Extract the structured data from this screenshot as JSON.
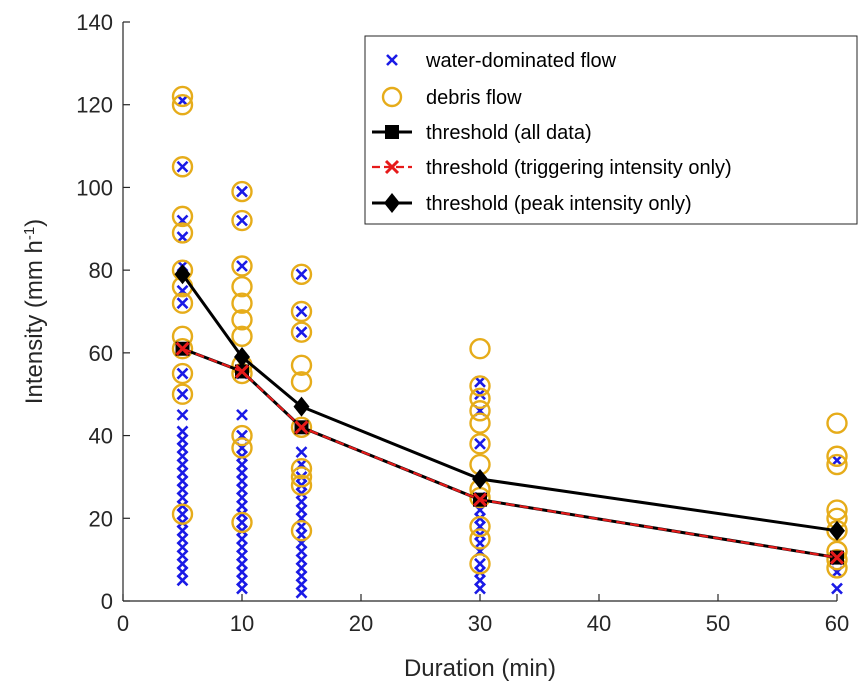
{
  "chart_data": {
    "type": "scatter",
    "title": "",
    "xlabel": "Duration (min)",
    "ylabel_base": "Intensity (mm h",
    "ylabel_sup": "-1",
    "ylabel_close": ")",
    "xlim": [
      0,
      60
    ],
    "ylim": [
      0,
      140
    ],
    "x_tick_labels": [
      "0",
      "10",
      "20",
      "30",
      "40",
      "50",
      "60"
    ],
    "y_tick_labels": [
      "0",
      "20",
      "40",
      "60",
      "80",
      "100",
      "120",
      "140"
    ],
    "x_tick_values": [
      0,
      10,
      20,
      30,
      40,
      50,
      60
    ],
    "y_tick_values": [
      0,
      20,
      40,
      60,
      80,
      100,
      120,
      140
    ],
    "grid": false,
    "legend_position": "top-right",
    "colors": {
      "water": "#1a1ae6",
      "debris": "#e6ac1a",
      "threshold_all": "#000000",
      "threshold_trigger": "#e61a1a",
      "threshold_peak": "#000000"
    },
    "series": [
      {
        "name": "water-dominated flow",
        "marker": "x",
        "points": [
          [
            5,
            5
          ],
          [
            5,
            7
          ],
          [
            5,
            9
          ],
          [
            5,
            11
          ],
          [
            5,
            13
          ],
          [
            5,
            15
          ],
          [
            5,
            17
          ],
          [
            5,
            19
          ],
          [
            5,
            21
          ],
          [
            5,
            23
          ],
          [
            5,
            25
          ],
          [
            5,
            27
          ],
          [
            5,
            29
          ],
          [
            5,
            31
          ],
          [
            5,
            33
          ],
          [
            5,
            35
          ],
          [
            5,
            37
          ],
          [
            5,
            39
          ],
          [
            5,
            41
          ],
          [
            5,
            45
          ],
          [
            5,
            50
          ],
          [
            5,
            55
          ],
          [
            5,
            61
          ],
          [
            5,
            72
          ],
          [
            5,
            75
          ],
          [
            5,
            81
          ],
          [
            5,
            88
          ],
          [
            5,
            92
          ],
          [
            5,
            105
          ],
          [
            5,
            121
          ],
          [
            10,
            3
          ],
          [
            10,
            5
          ],
          [
            10,
            7
          ],
          [
            10,
            9
          ],
          [
            10,
            11
          ],
          [
            10,
            13
          ],
          [
            10,
            15
          ],
          [
            10,
            17
          ],
          [
            10,
            19
          ],
          [
            10,
            21
          ],
          [
            10,
            23
          ],
          [
            10,
            25
          ],
          [
            10,
            27
          ],
          [
            10,
            29
          ],
          [
            10,
            31
          ],
          [
            10,
            33
          ],
          [
            10,
            35
          ],
          [
            10,
            37
          ],
          [
            10,
            40
          ],
          [
            10,
            45
          ],
          [
            10,
            55
          ],
          [
            10,
            81
          ],
          [
            10,
            92
          ],
          [
            10,
            99
          ],
          [
            15,
            2
          ],
          [
            15,
            4
          ],
          [
            15,
            6
          ],
          [
            15,
            8
          ],
          [
            15,
            10
          ],
          [
            15,
            12
          ],
          [
            15,
            14
          ],
          [
            15,
            16
          ],
          [
            15,
            18
          ],
          [
            15,
            20
          ],
          [
            15,
            22
          ],
          [
            15,
            24
          ],
          [
            15,
            26
          ],
          [
            15,
            28
          ],
          [
            15,
            30
          ],
          [
            15,
            33
          ],
          [
            15,
            36
          ],
          [
            15,
            42
          ],
          [
            15,
            65
          ],
          [
            15,
            70
          ],
          [
            15,
            79
          ],
          [
            30,
            3
          ],
          [
            30,
            5
          ],
          [
            30,
            7
          ],
          [
            30,
            9
          ],
          [
            30,
            12
          ],
          [
            30,
            14
          ],
          [
            30,
            16
          ],
          [
            30,
            18
          ],
          [
            30,
            20
          ],
          [
            30,
            22
          ],
          [
            30,
            25
          ],
          [
            30,
            38
          ],
          [
            30,
            46
          ],
          [
            30,
            50
          ],
          [
            30,
            53
          ],
          [
            60,
            3
          ],
          [
            60,
            7
          ],
          [
            60,
            10
          ],
          [
            60,
            11
          ],
          [
            60,
            34
          ]
        ]
      },
      {
        "name": "debris flow",
        "marker": "o",
        "points": [
          [
            5,
            21
          ],
          [
            5,
            50
          ],
          [
            5,
            55
          ],
          [
            5,
            61
          ],
          [
            5,
            64
          ],
          [
            5,
            72
          ],
          [
            5,
            76
          ],
          [
            5,
            80
          ],
          [
            5,
            89
          ],
          [
            5,
            93
          ],
          [
            5,
            105
          ],
          [
            5,
            120
          ],
          [
            5,
            122
          ],
          [
            10,
            19
          ],
          [
            10,
            37
          ],
          [
            10,
            40
          ],
          [
            10,
            55
          ],
          [
            10,
            57
          ],
          [
            10,
            64
          ],
          [
            10,
            68
          ],
          [
            10,
            72
          ],
          [
            10,
            76
          ],
          [
            10,
            81
          ],
          [
            10,
            92
          ],
          [
            10,
            99
          ],
          [
            15,
            17
          ],
          [
            15,
            28
          ],
          [
            15,
            30
          ],
          [
            15,
            32
          ],
          [
            15,
            42
          ],
          [
            15,
            53
          ],
          [
            15,
            57
          ],
          [
            15,
            65
          ],
          [
            15,
            70
          ],
          [
            15,
            79
          ],
          [
            30,
            9
          ],
          [
            30,
            15
          ],
          [
            30,
            18
          ],
          [
            30,
            25
          ],
          [
            30,
            27
          ],
          [
            30,
            33
          ],
          [
            30,
            38
          ],
          [
            30,
            43
          ],
          [
            30,
            46
          ],
          [
            30,
            49
          ],
          [
            30,
            52
          ],
          [
            30,
            61
          ],
          [
            60,
            8
          ],
          [
            60,
            10
          ],
          [
            60,
            12
          ],
          [
            60,
            17
          ],
          [
            60,
            20
          ],
          [
            60,
            22
          ],
          [
            60,
            33
          ],
          [
            60,
            35
          ],
          [
            60,
            43
          ]
        ]
      },
      {
        "name": "threshold (all data)",
        "marker": "square",
        "x": [
          5,
          10,
          15,
          30,
          60
        ],
        "y": [
          61,
          55.5,
          42,
          24.5,
          10.5
        ]
      },
      {
        "name": "threshold (triggering intensity only)",
        "marker": "x-dashed",
        "x": [
          5,
          10,
          15,
          30,
          60
        ],
        "y": [
          61,
          55.5,
          42,
          24.5,
          10.5
        ]
      },
      {
        "name": "threshold (peak intensity only)",
        "marker": "diamond",
        "x": [
          5,
          10,
          15,
          30,
          60
        ],
        "y": [
          79,
          59,
          47,
          29.5,
          17
        ]
      }
    ]
  }
}
